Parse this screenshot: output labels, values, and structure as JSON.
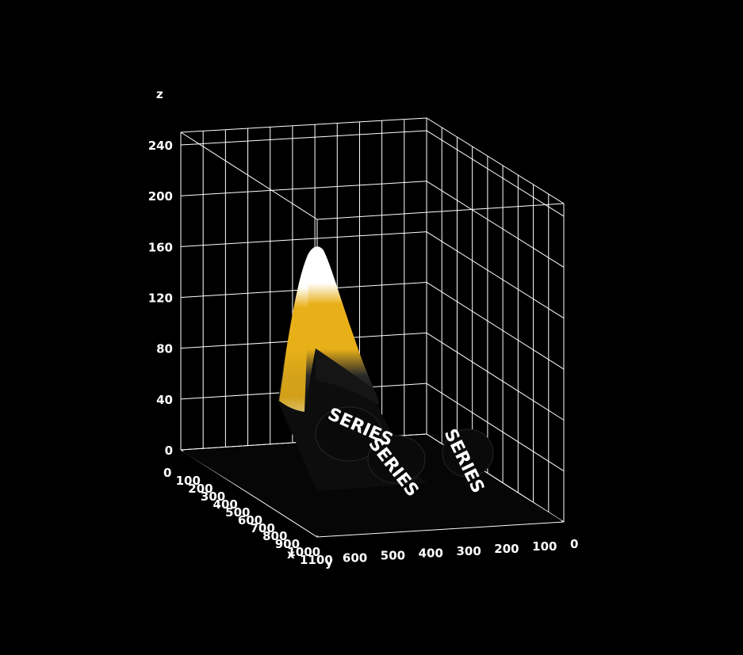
{
  "chart_data": {
    "type": "surface",
    "xlabel": "x",
    "ylabel": "y",
    "zlabel": "z",
    "x_ticks": [
      "0",
      "100",
      "200",
      "300",
      "400",
      "500",
      "600",
      "700",
      "800",
      "900",
      "1000",
      "1100"
    ],
    "y_ticks": [
      "600",
      "500",
      "400",
      "300",
      "200",
      "100",
      "0"
    ],
    "z_ticks": [
      "0",
      "40",
      "80",
      "120",
      "160",
      "200",
      "240"
    ],
    "xlim": [
      0,
      1100
    ],
    "ylim": [
      0,
      650
    ],
    "zlim": [
      0,
      250
    ],
    "grid": true,
    "colors": {
      "background": "#000000",
      "grid": "#ffffff",
      "surface_peak": "#ffffff",
      "surface_mid": "#e8b018",
      "surface_low": "#1a1a1a",
      "text": "#ffffff"
    },
    "surface": {
      "peak": {
        "x": 180,
        "y": 450,
        "z": 165
      },
      "watermark_text": [
        "SERIES",
        "SERIES",
        "SERIES"
      ]
    }
  }
}
